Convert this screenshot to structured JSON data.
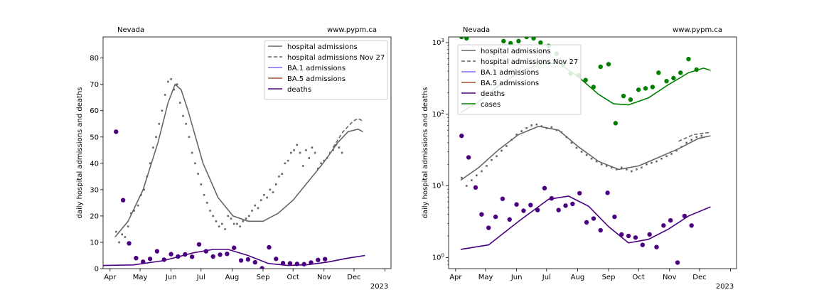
{
  "chart_data": [
    {
      "type": "scatter",
      "region_label": "Nevada",
      "site_label": "www.pypm.ca",
      "ylabel": "daily hospital admissions and deaths",
      "xlabel": "",
      "yscale": "linear",
      "ylim": [
        0,
        88
      ],
      "yticks": [
        0,
        10,
        20,
        30,
        40,
        50,
        60,
        70,
        80
      ],
      "x_range": [
        "2022-03-25",
        "2023-01-07"
      ],
      "x_ticks": [
        "Apr",
        "May",
        "Jun",
        "Jul",
        "Aug",
        "Sep",
        "Oct",
        "Nov",
        "Dec",
        "2023"
      ],
      "x_year_label": "2023",
      "legend_position": "upper right",
      "series": [
        {
          "name": "hospital admissions",
          "kind": "line",
          "color": "#666666",
          "x": [
            12,
            25,
            40,
            55,
            65,
            72,
            78,
            85,
            100,
            115,
            130,
            145,
            160,
            175,
            190,
            205,
            220,
            235,
            245,
            255,
            260
          ],
          "y": [
            12,
            18,
            30,
            48,
            63,
            70,
            68,
            60,
            40,
            27,
            20,
            18,
            18,
            21,
            26,
            33,
            40,
            48,
            52,
            53,
            52
          ]
        },
        {
          "name": "hospital admissions Nov 27",
          "kind": "dashed",
          "color": "#666666",
          "x": [
            230,
            240,
            250,
            255,
            260
          ],
          "y": [
            46,
            52,
            56,
            57,
            56
          ]
        },
        {
          "name": "BA.1 admissions",
          "kind": "line",
          "color": "#7b68ee",
          "x": [],
          "y": []
        },
        {
          "name": "BA.5 admissions",
          "kind": "line",
          "color": "#a0522d",
          "x": [],
          "y": []
        },
        {
          "name": "deaths",
          "kind": "line",
          "color": "#4b0082",
          "x": [
            0,
            30,
            60,
            90,
            110,
            125,
            145,
            165,
            185,
            205,
            225,
            245,
            262
          ],
          "y": [
            1.2,
            1.4,
            3,
            6,
            7.3,
            7.3,
            5,
            2,
            1.2,
            1.5,
            2.5,
            4,
            5
          ]
        },
        {
          "name": "hospital admission points",
          "kind": "dots",
          "color": "#666666",
          "x": [
            13,
            16,
            19,
            22,
            25,
            28,
            31,
            35,
            38,
            41,
            44,
            47,
            50,
            53,
            56,
            59,
            62,
            65,
            68,
            71,
            74,
            77,
            80,
            83,
            86,
            89,
            92,
            95,
            98,
            101,
            104,
            107,
            110,
            113,
            116,
            119,
            122,
            125,
            128,
            131,
            134,
            137,
            140,
            143,
            146,
            149,
            152,
            155,
            158,
            161,
            164,
            167,
            170,
            173,
            176,
            179,
            182,
            185,
            188,
            191,
            194,
            197,
            200,
            203,
            206,
            209,
            212,
            215,
            218,
            221,
            224,
            227,
            230,
            233,
            236,
            239
          ],
          "y": [
            14,
            10,
            13,
            12,
            16,
            21,
            22,
            24,
            28,
            30,
            35,
            40,
            46,
            50,
            55,
            60,
            66,
            71,
            72,
            68,
            70,
            63,
            58,
            55,
            50,
            44,
            40,
            36,
            32,
            28,
            25,
            22,
            20,
            18,
            16,
            17,
            15,
            20,
            19,
            17,
            17,
            16,
            18,
            19,
            20,
            22,
            24,
            23,
            26,
            28,
            27,
            30,
            29,
            32,
            35,
            36,
            40,
            41,
            44,
            45,
            47,
            44,
            39,
            45,
            42,
            46,
            44,
            38,
            40,
            41,
            42,
            44,
            45,
            47,
            46,
            44
          ]
        },
        {
          "name": "death points",
          "kind": "bigdots",
          "color": "#4b0082",
          "x": [
            13,
            20,
            26,
            33,
            40,
            47,
            54,
            61,
            68,
            75,
            82,
            89,
            96,
            103,
            110,
            117,
            124,
            131,
            138,
            145,
            152,
            159,
            166,
            173,
            180,
            187,
            194,
            201,
            208,
            215,
            222
          ],
          "y": [
            52,
            26,
            9.6,
            4,
            2.6,
            3.7,
            6.6,
            3.4,
            5.5,
            4.6,
            5.4,
            4.5,
            9.2,
            6.6,
            4.6,
            5.3,
            5.6,
            7.9,
            3.1,
            3.5,
            2.4,
            0.1,
            8.1,
            3.7,
            2.1,
            2.0,
            1.8,
            1.7,
            2.3,
            3.3,
            3.6
          ]
        }
      ]
    },
    {
      "type": "scatter",
      "region_label": "Nevada",
      "site_label": "www.pypm.ca",
      "ylabel": "daily hospital admissions and deaths",
      "xlabel": "",
      "yscale": "log",
      "ylim": [
        0.7,
        1200
      ],
      "yticks": [
        "10^0",
        "10^1",
        "10^2",
        "10^3"
      ],
      "x_range": [
        "2022-03-25",
        "2023-01-07"
      ],
      "x_ticks": [
        "Apr",
        "May",
        "Jun",
        "Jul",
        "Aug",
        "Sep",
        "Oct",
        "Nov",
        "Dec",
        "2023"
      ],
      "x_year_label": "2023",
      "legend_position": "upper left",
      "series": [
        {
          "name": "hospital admissions",
          "kind": "line",
          "color": "#666666",
          "x": [
            12,
            30,
            50,
            70,
            90,
            110,
            130,
            150,
            170,
            190,
            210,
            230,
            250,
            262
          ],
          "y": [
            12,
            18,
            32,
            52,
            68,
            60,
            35,
            22,
            17,
            19,
            25,
            33,
            46,
            50
          ]
        },
        {
          "name": "hospital admissions Nov 27",
          "kind": "dashed",
          "color": "#666666",
          "x": [
            230,
            245,
            262
          ],
          "y": [
            42,
            52,
            56
          ]
        },
        {
          "name": "BA.1 admissions",
          "kind": "line",
          "color": "#7b68ee",
          "x": [],
          "y": []
        },
        {
          "name": "BA.5 admissions",
          "kind": "line",
          "color": "#a0522d",
          "x": [],
          "y": []
        },
        {
          "name": "deaths",
          "kind": "line",
          "color": "#4b0082",
          "x": [
            12,
            40,
            70,
            100,
            120,
            140,
            160,
            180,
            200,
            220,
            240,
            262
          ],
          "y": [
            1.3,
            1.5,
            3.2,
            6.5,
            7.2,
            5.2,
            2.7,
            1.6,
            1.8,
            2.5,
            3.8,
            5.1
          ]
        },
        {
          "name": "cases",
          "kind": "line",
          "color": "#008000",
          "x": [
            12,
            30,
            50,
            70,
            90,
            110,
            130,
            150,
            165,
            180,
            200,
            220,
            240,
            255,
            262
          ],
          "y": [
            105,
            150,
            250,
            380,
            500,
            520,
            330,
            190,
            140,
            135,
            170,
            260,
            380,
            440,
            410
          ]
        },
        {
          "name": "hospital admission points",
          "kind": "dots",
          "color": "#666666",
          "x": [
            13,
            18,
            23,
            28,
            33,
            38,
            43,
            48,
            53,
            58,
            63,
            68,
            73,
            78,
            83,
            88,
            93,
            98,
            103,
            108,
            113,
            118,
            123,
            128,
            133,
            138,
            143,
            148,
            153,
            158,
            163,
            168,
            173,
            178,
            183,
            188,
            193,
            198,
            203,
            208,
            213,
            218,
            223,
            228,
            233,
            238,
            243,
            248,
            253
          ],
          "y": [
            13,
            10,
            12,
            14,
            16,
            19,
            23,
            26,
            31,
            36,
            44,
            52,
            58,
            64,
            70,
            72,
            68,
            64,
            66,
            60,
            56,
            48,
            40,
            34,
            30,
            27,
            24,
            22,
            20,
            19,
            18,
            17,
            18,
            17,
            16,
            17,
            18,
            20,
            21,
            22,
            24,
            26,
            28,
            31,
            35,
            40,
            44,
            48,
            50
          ]
        },
        {
          "name": "death points",
          "kind": "bigdots",
          "color": "#4b0082",
          "x": [
            13,
            20,
            27,
            33,
            40,
            47,
            54,
            61,
            68,
            75,
            82,
            89,
            96,
            103,
            110,
            117,
            124,
            131,
            138,
            145,
            152,
            159,
            166,
            173,
            180,
            187,
            194,
            201,
            208,
            215,
            222,
            229,
            236,
            243
          ],
          "y": [
            50,
            25,
            9.5,
            4,
            2.6,
            3.7,
            6.6,
            3.4,
            5.5,
            4.5,
            5.4,
            4.6,
            9.3,
            6.7,
            4.6,
            5.3,
            5.6,
            7.9,
            3.1,
            3.5,
            2.4,
            8.0,
            3.7,
            2.1,
            2.0,
            1.9,
            1.5,
            2.1,
            1.4,
            2.8,
            3.3,
            0.85,
            3.8,
            2.8
          ]
        },
        {
          "name": "case points",
          "kind": "bigdots",
          "color": "#008000",
          "x": [
            13,
            18,
            55,
            62,
            70,
            78,
            85,
            92,
            100,
            108,
            115,
            122,
            130,
            137,
            145,
            152,
            160,
            167,
            175,
            182,
            190,
            197,
            204,
            210,
            218,
            225,
            232,
            240,
            248
          ],
          "y": [
            1200,
            1150,
            1050,
            980,
            1050,
            1200,
            1150,
            1000,
            900,
            700,
            500,
            370,
            350,
            300,
            240,
            460,
            500,
            75,
            180,
            160,
            220,
            230,
            240,
            380,
            290,
            320,
            380,
            590,
            420
          ]
        }
      ]
    }
  ]
}
